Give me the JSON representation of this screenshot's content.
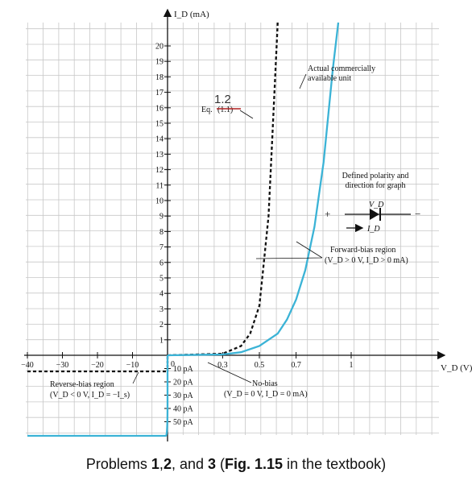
{
  "chart_data": {
    "type": "line",
    "axes": {
      "y_label": "I_D (mA)",
      "x_label": "V_D (V)",
      "y_ticks_positive": [
        1,
        2,
        3,
        4,
        5,
        6,
        7,
        8,
        9,
        10,
        11,
        12,
        13,
        14,
        15,
        16,
        17,
        18,
        19,
        20
      ],
      "x_ticks_negative": [
        "−40",
        "−30",
        "−20",
        "−10"
      ],
      "x_ticks_positive": [
        "0.3",
        "0.5",
        "0.7",
        "1"
      ],
      "origin_label": "0",
      "y_ticks_negative": [
        "10 pA",
        "20 pA",
        "30 pA",
        "40 pA",
        "50 pA"
      ],
      "grid": true
    },
    "series": [
      {
        "name": "Actual commercially available unit",
        "color": "#3bb3d6",
        "style": "solid",
        "forward": [
          [
            0,
            0
          ],
          [
            0.3,
            0.05
          ],
          [
            0.4,
            0.2
          ],
          [
            0.5,
            0.6
          ],
          [
            0.6,
            1.4
          ],
          [
            0.65,
            2.3
          ],
          [
            0.7,
            3.6
          ],
          [
            0.75,
            5.5
          ],
          [
            0.8,
            8.3
          ],
          [
            0.85,
            12.5
          ],
          [
            0.9,
            18.5
          ],
          [
            0.93,
            24
          ]
        ],
        "reverse": [
          [
            0,
            0
          ],
          [
            -5,
            0
          ],
          [
            -10,
            0
          ],
          [
            -40,
            0
          ]
        ]
      },
      {
        "name": "Eq. (1.1)",
        "color": "#111111",
        "style": "dashed",
        "forward": [
          [
            0,
            0
          ],
          [
            0.3,
            0.1
          ],
          [
            0.4,
            0.6
          ],
          [
            0.45,
            1.4
          ],
          [
            0.5,
            3.2
          ],
          [
            0.52,
            5.5
          ],
          [
            0.55,
            9
          ],
          [
            0.57,
            14
          ],
          [
            0.6,
            24
          ]
        ],
        "reverse": [
          [
            0,
            0
          ],
          [
            -40,
            0
          ]
        ]
      }
    ],
    "annotations": {
      "eq_label": "Eq.",
      "eq_ref_struck": "(1.1)",
      "eq_ref_handwritten": "1.2",
      "actual_unit": [
        "Actual commercially",
        "available unit"
      ],
      "polarity": [
        "Defined polarity and",
        "direction for graph"
      ],
      "diode_v": "V_D",
      "diode_i": "I_D",
      "plus": "+",
      "minus": "−",
      "forward_region": [
        "Forward-bias region",
        "(V_D > 0 V, I_D > 0 mA)"
      ],
      "no_bias": [
        "No-bias",
        "(V_D = 0 V, I_D = 0 mA)"
      ],
      "reverse_region": [
        "Reverse-bias region",
        "(V_D < 0 V, I_D = −I_s)"
      ]
    }
  },
  "caption": {
    "pre": "Problems ",
    "p1": "1",
    "sep1": ",",
    "p2": "2",
    "sep2": ", and ",
    "p3": "3",
    "mid": " (",
    "fig": "Fig. 1.15",
    "post": " in the textbook)"
  }
}
